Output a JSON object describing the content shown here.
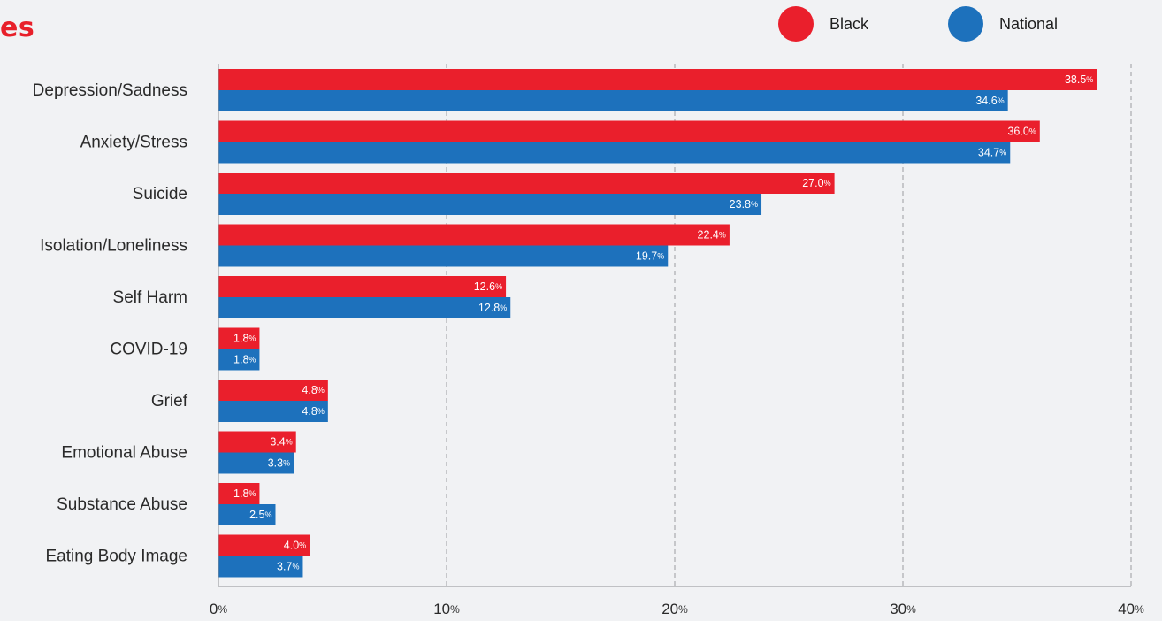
{
  "header": {
    "title": "es"
  },
  "colors": {
    "black": "#ea1f2c",
    "national": "#1d71bc",
    "title": "#e8202a"
  },
  "chart_data": {
    "type": "bar",
    "orientation": "horizontal",
    "categories": [
      "Depression/Sadness",
      "Anxiety/Stress",
      "Suicide",
      "Isolation/Loneliness",
      "Self Harm",
      "COVID-19",
      "Grief",
      "Emotional Abuse",
      "Substance Abuse",
      "Eating Body Image"
    ],
    "series": [
      {
        "name": "Black",
        "values": [
          38.5,
          36.0,
          27.0,
          22.4,
          12.6,
          1.8,
          4.8,
          3.4,
          1.8,
          4.0
        ]
      },
      {
        "name": "National",
        "values": [
          34.6,
          34.7,
          23.8,
          19.7,
          12.8,
          1.8,
          4.8,
          3.3,
          2.5,
          3.7
        ]
      }
    ],
    "value_labels": [
      [
        "38.5%",
        "36.0%",
        "27.0%",
        "22.4%",
        "12.6%",
        "1.8%",
        "4.8%",
        "3.4%",
        "1.8%",
        "4.0%"
      ],
      [
        "34.6%",
        "34.7%",
        "23.8%",
        "19.7%",
        "12.8%",
        "1.8%",
        "4.8%",
        "3.3%",
        "2.5%",
        "3.7%"
      ]
    ],
    "xlim": [
      0,
      40
    ],
    "xticks": [
      0,
      10,
      20,
      30,
      40
    ],
    "xtick_labels": [
      "0%",
      "10%",
      "20%",
      "30%",
      "40%"
    ],
    "grid": "vertical dashed",
    "legend_position": "top-right"
  }
}
